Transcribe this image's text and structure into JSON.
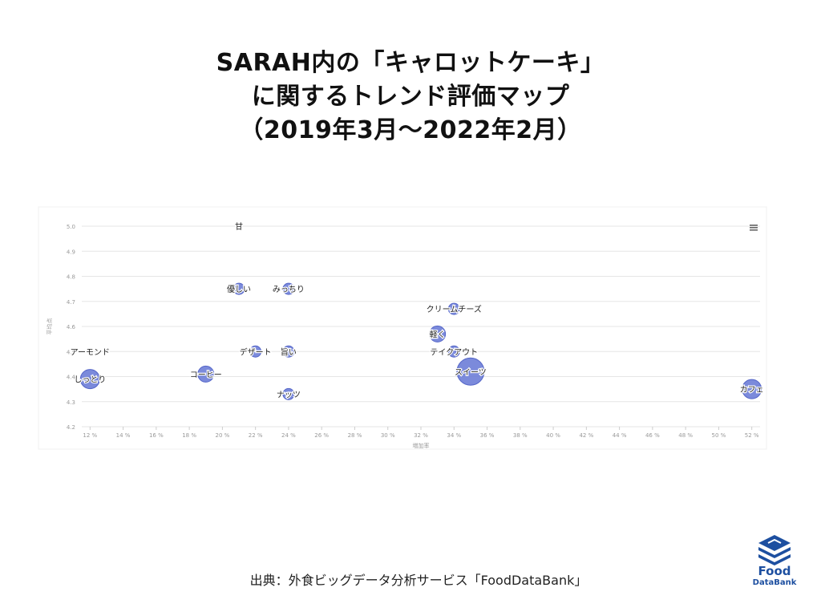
{
  "title": {
    "line1": "SARAH内の「キャロットケーキ」",
    "line2": "に関するトレンド評価マップ",
    "line3": "（2019年3月～2022年2月）"
  },
  "source": "出典：外食ビッグデータ分析サービス「FoodDataBank」",
  "logo": {
    "text1": "Food",
    "text2": "DataBank"
  },
  "menu_icon": "hamburger-menu-icon",
  "colors": {
    "bubble": "#7080d8",
    "bubble_stroke": "#5566c8",
    "grid": "#e6e6e6",
    "axis_text": "#999999",
    "logo": "#1d4fa0"
  },
  "chart_data": {
    "type": "scatter",
    "xlabel": "増加率",
    "ylabel": "平均点",
    "x_ticks": [
      "12 %",
      "14 %",
      "16 %",
      "18 %",
      "20 %",
      "22 %",
      "24 %",
      "26 %",
      "28 %",
      "30 %",
      "32 %",
      "34 %",
      "36 %",
      "38 %",
      "40 %",
      "42 %",
      "44 %",
      "46 %",
      "48 %",
      "50 %",
      "52 %"
    ],
    "y_ticks": [
      "5.0",
      "4.9",
      "4.8",
      "4.7",
      "4.6",
      "4.5",
      "4.4",
      "4.3",
      "4.2"
    ],
    "xlim": [
      11.5,
      52.5
    ],
    "ylim": [
      4.2,
      5.0
    ],
    "points": [
      {
        "label": "甘",
        "x": 21,
        "y": 5.0,
        "size": 0
      },
      {
        "label": "優しい",
        "x": 21,
        "y": 4.75,
        "size": 1
      },
      {
        "label": "みっちり",
        "x": 24,
        "y": 4.75,
        "size": 1
      },
      {
        "label": "クリームチーズ",
        "x": 34,
        "y": 4.67,
        "size": 1
      },
      {
        "label": "軽く",
        "x": 33,
        "y": 4.57,
        "size": 2
      },
      {
        "label": "アーモンド",
        "x": 12,
        "y": 4.5,
        "size": 0
      },
      {
        "label": "デザート",
        "x": 22,
        "y": 4.5,
        "size": 1
      },
      {
        "label": "旨い",
        "x": 24,
        "y": 4.5,
        "size": 1
      },
      {
        "label": "テイクアウト",
        "x": 34,
        "y": 4.5,
        "size": 1
      },
      {
        "label": "スイーツ",
        "x": 35,
        "y": 4.42,
        "size": 4
      },
      {
        "label": "コーヒー",
        "x": 19,
        "y": 4.41,
        "size": 2
      },
      {
        "label": "しっとり",
        "x": 12,
        "y": 4.39,
        "size": 3
      },
      {
        "label": "ナッツ",
        "x": 24,
        "y": 4.33,
        "size": 1
      },
      {
        "label": "カフェ",
        "x": 52,
        "y": 4.35,
        "size": 3
      }
    ]
  }
}
